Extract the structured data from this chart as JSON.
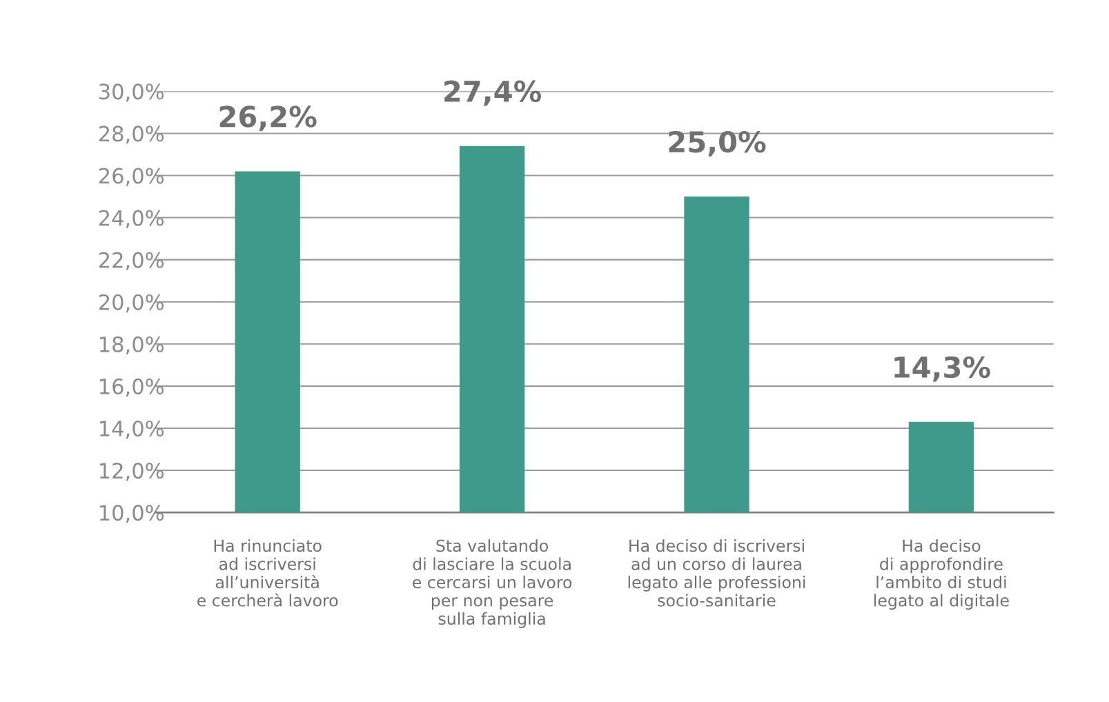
{
  "chart_data": {
    "type": "bar",
    "categories": [
      "Ha rinunciato\nad iscriversi\nall’università\ne cercherà lavoro",
      "Sta valutando\ndi lasciare la scuola\ne cercarsi un lavoro\nper non pesare\nsulla famiglia",
      "Ha deciso di iscriversi\nad un corso di laurea\nlegato alle professioni\nsocio-sanitarie",
      "Ha deciso\ndi approfondire\nl’ambito di studi\nlegato al digitale"
    ],
    "values": [
      26.2,
      27.4,
      25.0,
      14.3
    ],
    "value_labels": [
      "26,2%",
      "27,4%",
      "25,0%",
      "14,3%"
    ],
    "color": "#3f9a8b",
    "ylim": [
      10,
      30
    ],
    "yticks": [
      {
        "value": 10,
        "label": "10,0%"
      },
      {
        "value": 12,
        "label": "12,0%"
      },
      {
        "value": 14,
        "label": "14,0%"
      },
      {
        "value": 16,
        "label": "16,0%"
      },
      {
        "value": 18,
        "label": "18,0%"
      },
      {
        "value": 20,
        "label": "20,0%"
      },
      {
        "value": 22,
        "label": "22,0%"
      },
      {
        "value": 24,
        "label": "24,0%"
      },
      {
        "value": 26,
        "label": "26,0%"
      },
      {
        "value": 28,
        "label": "28,0%"
      },
      {
        "value": 30,
        "label": "30,0%"
      }
    ],
    "grid": "y"
  }
}
